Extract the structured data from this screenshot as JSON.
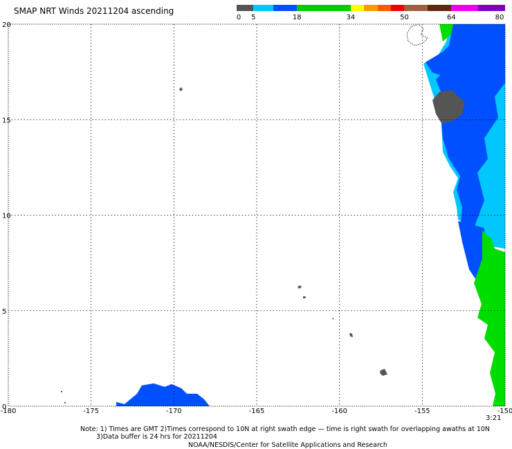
{
  "title": "SMAP NRT Winds 20211204 ascending",
  "colorbar": {
    "labels": [
      "0",
      "5",
      "18",
      "34",
      "50",
      "64",
      "80"
    ],
    "values": [
      0,
      5,
      18,
      34,
      50,
      64,
      80
    ],
    "segments": [
      {
        "from": 0,
        "to": 5,
        "color": "#555555"
      },
      {
        "from": 5,
        "to": 11,
        "color": "#00c8ff"
      },
      {
        "from": 11,
        "to": 18,
        "color": "#0050ff"
      },
      {
        "from": 18,
        "to": 34,
        "color": "#00cc00"
      },
      {
        "from": 34,
        "to": 38,
        "color": "#ffff00"
      },
      {
        "from": 38,
        "to": 42,
        "color": "#ff9900"
      },
      {
        "from": 42,
        "to": 46,
        "color": "#ff5a00"
      },
      {
        "from": 46,
        "to": 50,
        "color": "#ee0000"
      },
      {
        "from": 50,
        "to": 57,
        "color": "#a06040"
      },
      {
        "from": 57,
        "to": 64,
        "color": "#5a2a10"
      },
      {
        "from": 64,
        "to": 72,
        "color": "#ee00ee"
      },
      {
        "from": 72,
        "to": 80,
        "color": "#8000c0"
      }
    ]
  },
  "axes": {
    "lon_range": [
      -180,
      -150
    ],
    "lat_range": [
      0,
      20
    ],
    "x_ticks": [
      -180,
      -175,
      -170,
      -165,
      -160,
      -155,
      -150
    ],
    "x_tick_labels": [
      "-180",
      "-175",
      "-170",
      "-165",
      "-160",
      "-155",
      "-150"
    ],
    "y_ticks": [
      0,
      5,
      10,
      15,
      20
    ],
    "y_tick_labels": [
      "0",
      "5",
      "10",
      "15",
      "20"
    ],
    "grid": "dotted"
  },
  "time_label": "3:21",
  "notes": {
    "line1": "Note: 1) Times are GMT 2)Times correspond to 10N at right swath edge — time is right swath for overlapping awaths at 10N",
    "line2": "3)Data buffer is 24 hrs for 20211204",
    "line3": "NOAA/NESDIS/Center for Satellite Applications and Research"
  },
  "colors": {
    "land": "#555555",
    "calm": "#555555",
    "light_blue": "#00c8ff",
    "mid_blue": "#0050ff",
    "green": "#00dd00"
  }
}
